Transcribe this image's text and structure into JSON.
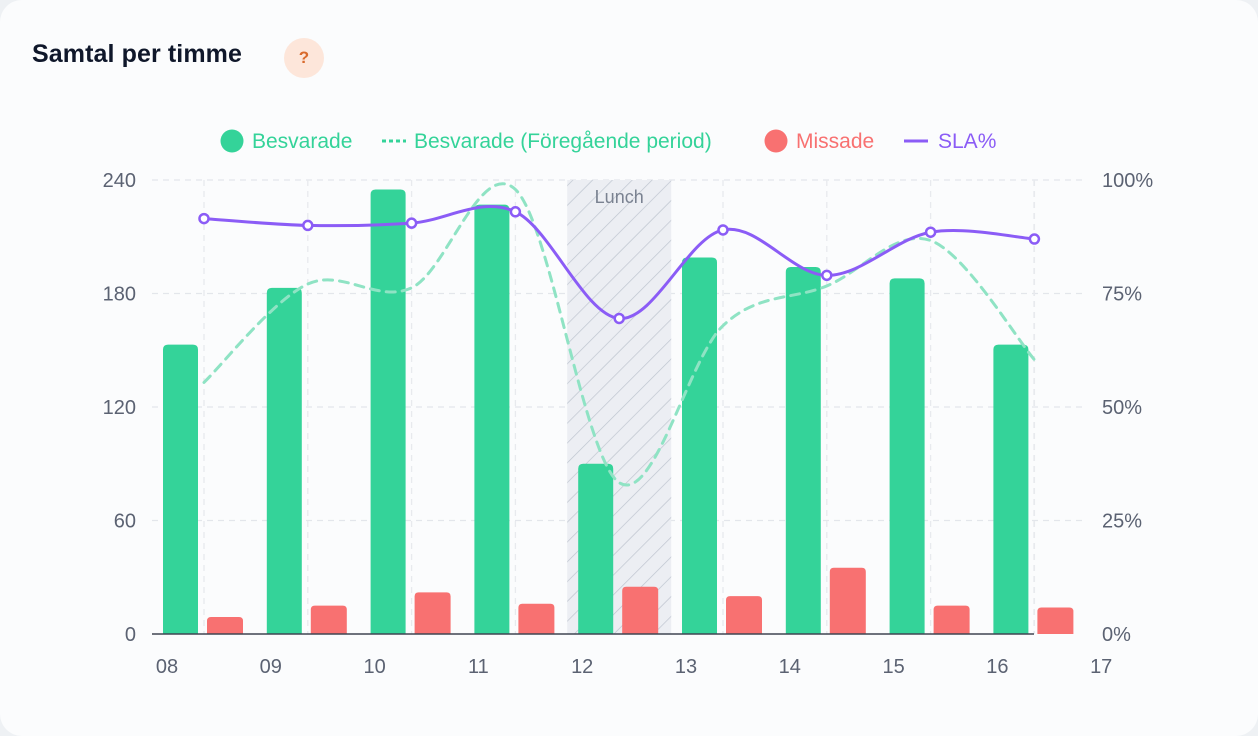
{
  "card": {
    "title": "Samtal per timme",
    "help_label": "?"
  },
  "colors": {
    "answered": "#34d399",
    "previous": "#8fe3c4",
    "missed": "#f87171",
    "sla": "#8b5cf6",
    "annotation_fill": "#eceef3"
  },
  "chart_data": {
    "type": "bar",
    "categories": [
      "08",
      "09",
      "10",
      "11",
      "12",
      "13",
      "14",
      "15",
      "16"
    ],
    "x_tick_labels": [
      "08",
      "09",
      "10",
      "11",
      "12",
      "13",
      "14",
      "15",
      "16",
      "17"
    ],
    "series": [
      {
        "name": "Besvarade",
        "type": "bar",
        "axis": "left",
        "values": [
          153,
          183,
          235,
          227,
          90,
          199,
          194,
          188,
          153
        ]
      },
      {
        "name": "Besvarade (Föregående period)",
        "type": "line",
        "style": "dashed",
        "axis": "left",
        "values": [
          133,
          185,
          183,
          235,
          80,
          163,
          184,
          208,
          145
        ]
      },
      {
        "name": "Missade",
        "type": "bar",
        "axis": "left",
        "values": [
          9,
          15,
          22,
          16,
          25,
          20,
          35,
          15,
          14
        ]
      },
      {
        "name": "SLA%",
        "type": "line",
        "axis": "right",
        "values": [
          91.5,
          90,
          90.5,
          93,
          69.5,
          89,
          79,
          88.5,
          87
        ]
      }
    ],
    "y_left": {
      "ticks": [
        0,
        60,
        120,
        180,
        240
      ],
      "ylim": [
        0,
        240
      ]
    },
    "y_right": {
      "ticks": [
        "0%",
        "25%",
        "50%",
        "75%",
        "100%"
      ],
      "ylim": [
        0,
        100
      ]
    },
    "annotations": [
      {
        "label": "Lunch",
        "hour": "12"
      }
    ],
    "legend": {
      "position": "top-center",
      "items": [
        {
          "label": "Besvarade",
          "marker": "dot",
          "color": "#34d399"
        },
        {
          "label": "Besvarade (Föregående period)",
          "marker": "dash",
          "color": "#34d399"
        },
        {
          "label": "Missade",
          "marker": "dot",
          "color": "#f87171"
        },
        {
          "label": "SLA%",
          "marker": "line",
          "color": "#8b5cf6"
        }
      ]
    },
    "grid": true
  }
}
